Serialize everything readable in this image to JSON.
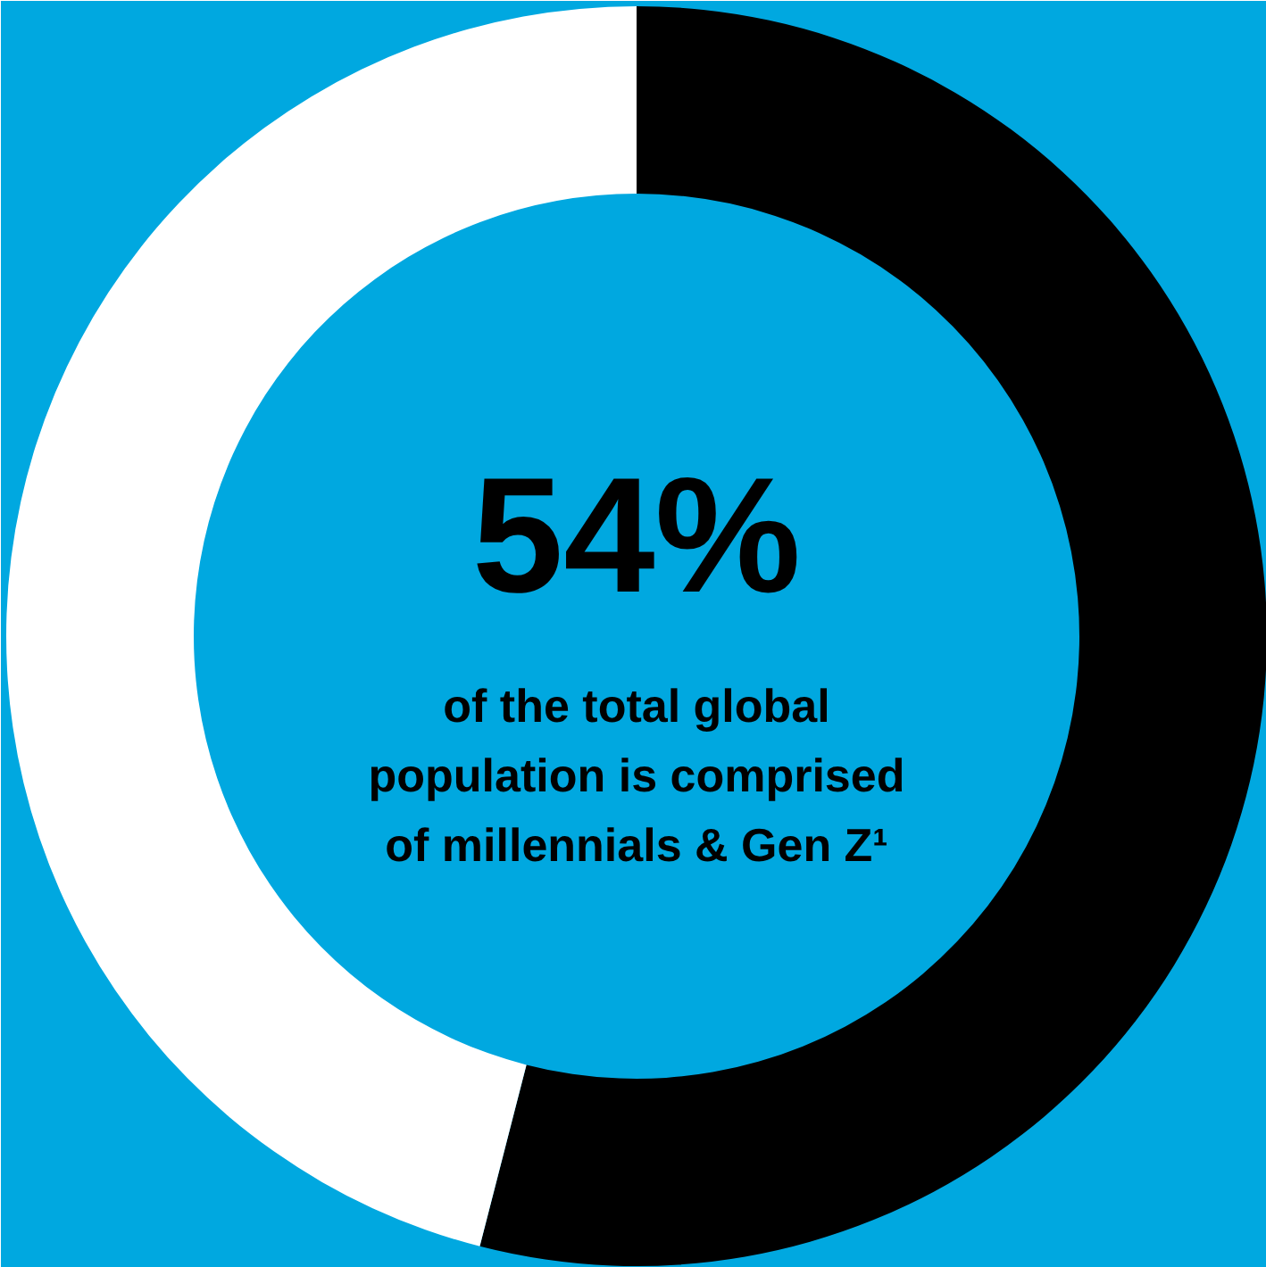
{
  "chart_data": {
    "type": "donut",
    "categories": [
      null,
      null
    ],
    "values": [
      54,
      46
    ],
    "colors": [
      "#000000",
      "#ffffff"
    ],
    "value_labels": [
      "54%",
      null
    ],
    "annotations": [
      "of the total global population is comprised of millennials & Gen Z¹"
    ],
    "legend": false
  }
}
